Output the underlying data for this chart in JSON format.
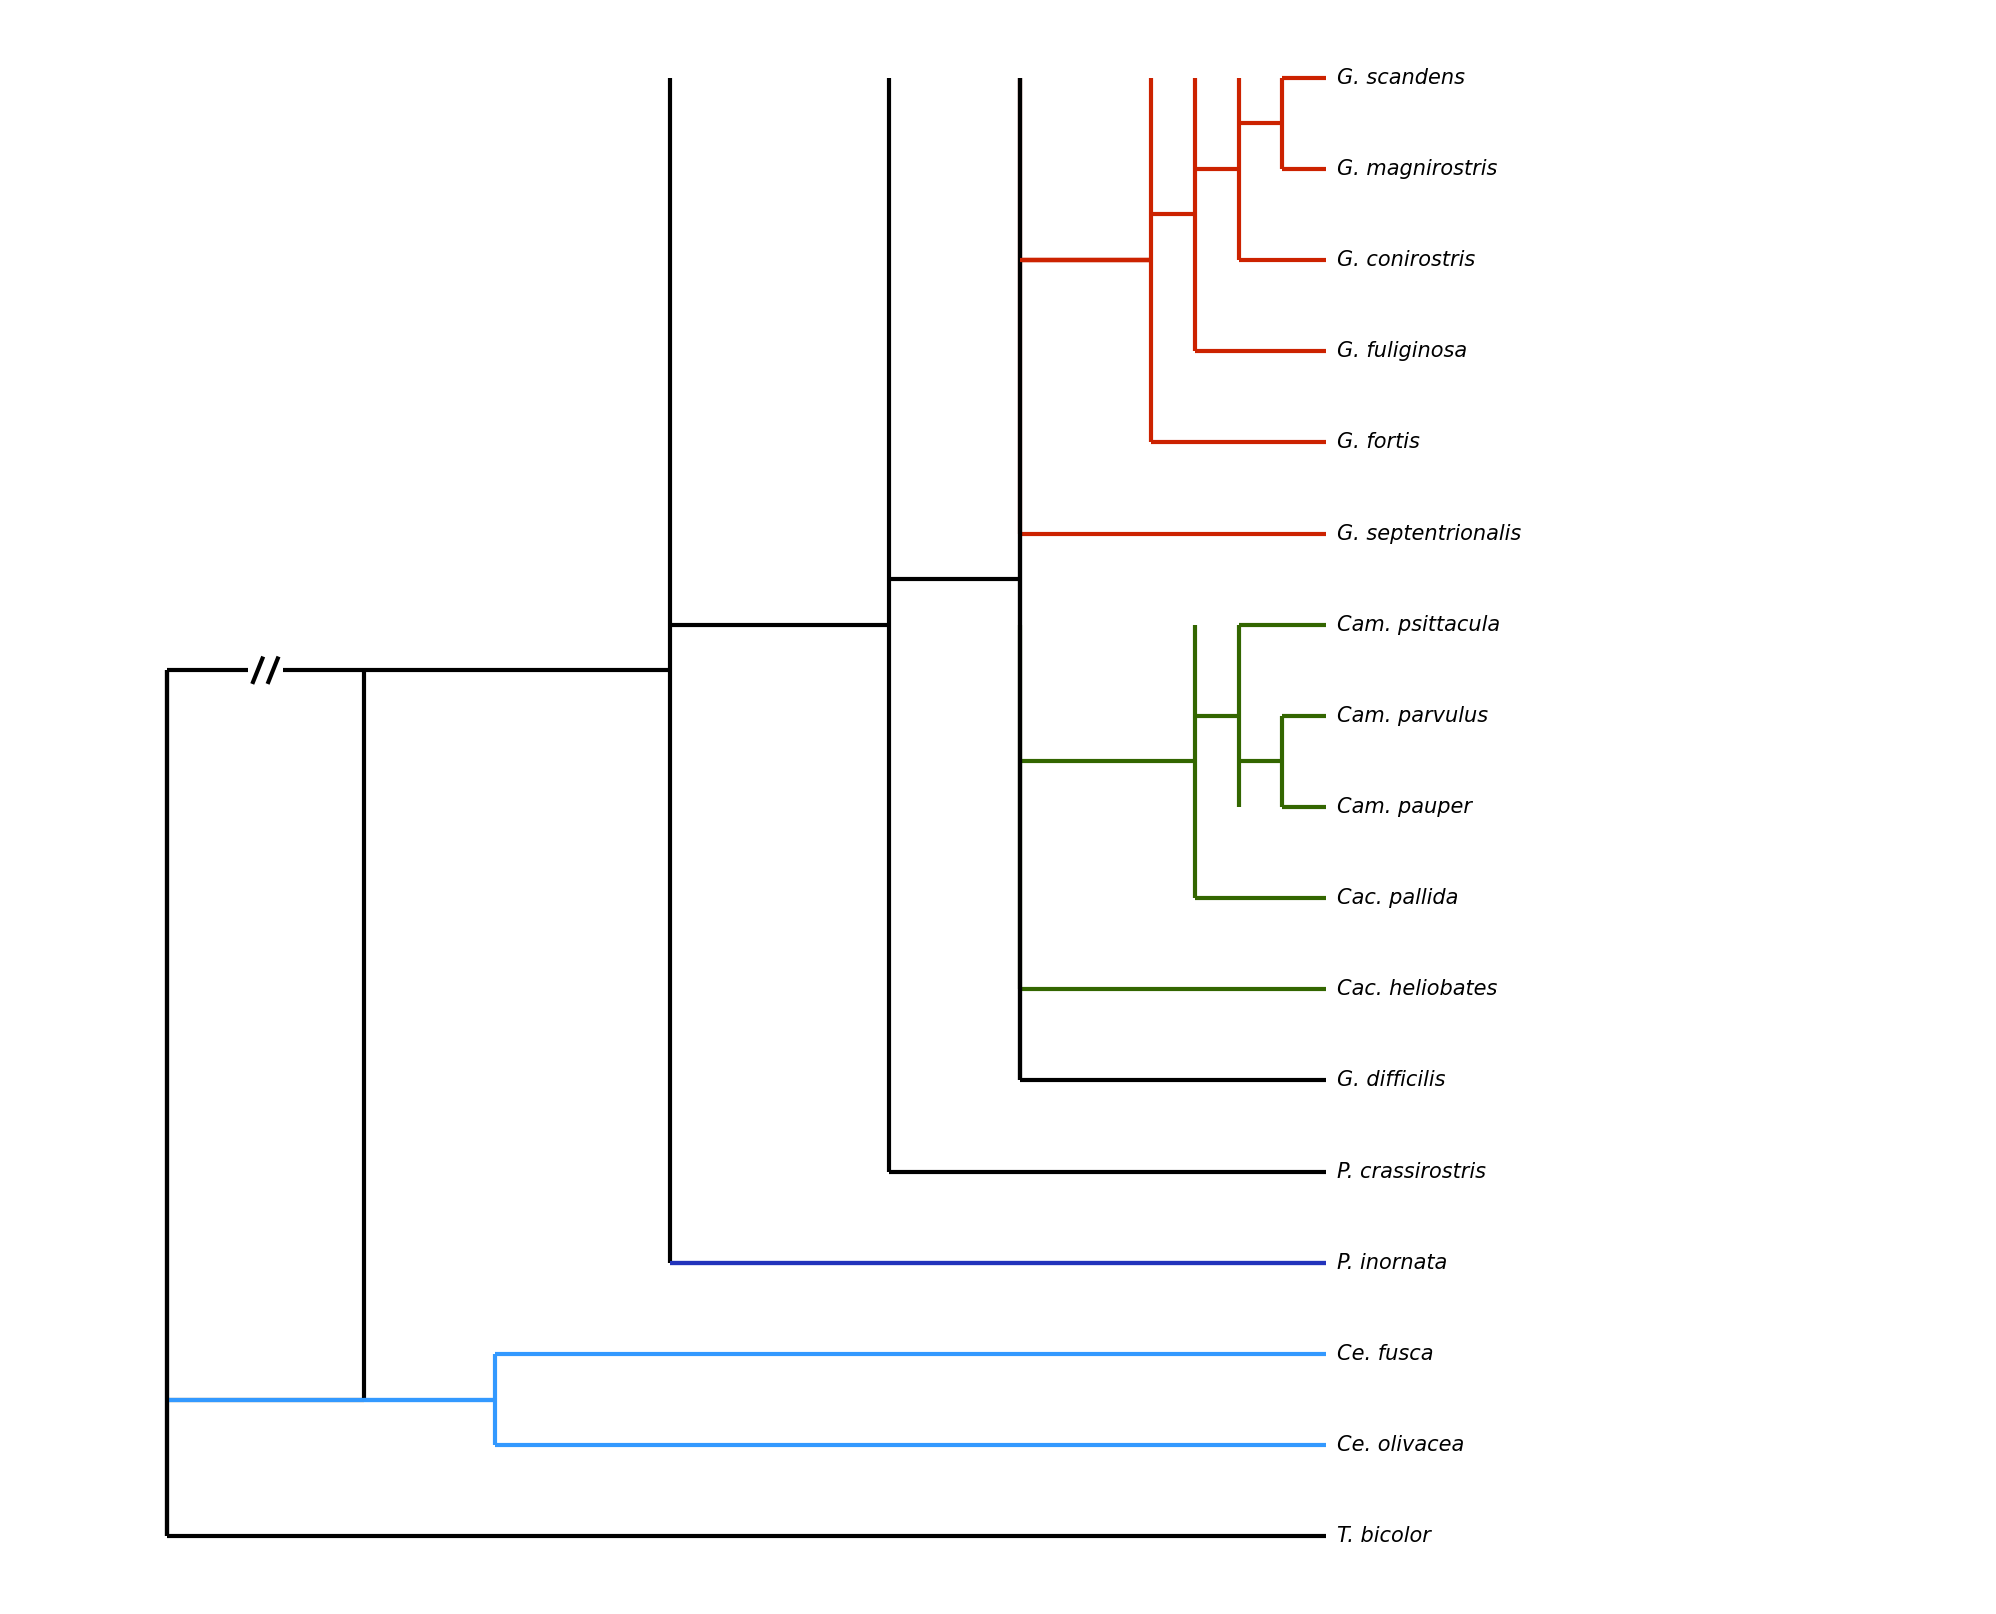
{
  "taxa": [
    "G. scandens",
    "G. magnirostris",
    "G. conirostris",
    "G. fuliginosa",
    "G. fortis",
    "G. septentrionalis",
    "Cam. psittacula",
    "Cam. parvulus",
    "Cam. pauper",
    "Cac. pallida",
    "Cac. heliobates",
    "G. difficilis",
    "P. crassirostris",
    "P. inornata",
    "Ce. fusca",
    "Ce. olivacea",
    "T. bicolor"
  ],
  "taxa_colors": [
    "#cc2200",
    "#cc2200",
    "#cc2200",
    "#cc2200",
    "#cc2200",
    "#cc2200",
    "#336600",
    "#336600",
    "#336600",
    "#336600",
    "#336600",
    "#000000",
    "#000000",
    "#2233bb",
    "#3399ff",
    "#3399ff",
    "#000000"
  ],
  "line_width": 3.0,
  "background_color": "#ffffff",
  "red": "#cc2200",
  "green": "#336600",
  "black": "#000000",
  "dark_blue": "#2233bb",
  "light_blue": "#3399ff"
}
